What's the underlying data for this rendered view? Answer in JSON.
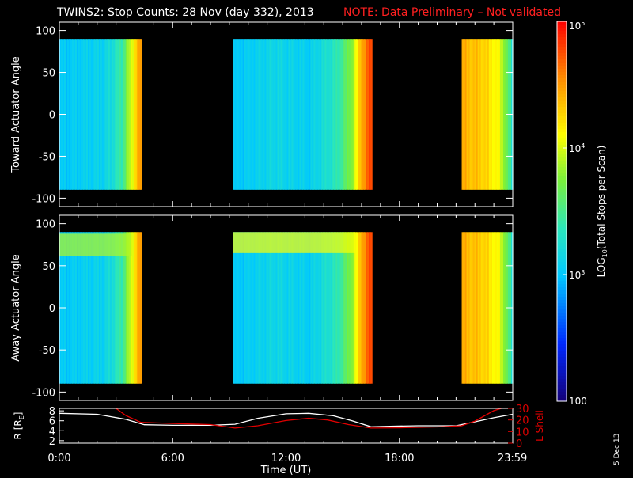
{
  "title": {
    "main": "TWINS2: Stop Counts: 28 Nov (day 332), 2013",
    "note": "NOTE: Data Preliminary – Not validated",
    "note_color": "#ff2020"
  },
  "footer": {
    "date_stamp": "5 Dec 13"
  },
  "chart_data": [
    {
      "type": "heatmap",
      "panel": "toward",
      "ylabel": "Toward Actuator Angle",
      "ylim": [
        -110,
        110
      ],
      "yticks": [
        -100,
        -50,
        0,
        50,
        100
      ],
      "y_data_range": [
        -90,
        90
      ],
      "xlim_hours": [
        0,
        24
      ],
      "data_blocks_hours": [
        {
          "start": 0.0,
          "end": 4.35,
          "profile": [
            [
              0,
              3.0
            ],
            [
              0.55,
              3.1
            ],
            [
              0.75,
              3.4
            ],
            [
              0.86,
              3.9
            ],
            [
              0.93,
              4.3
            ],
            [
              1,
              4.5
            ]
          ]
        },
        {
          "start": 9.2,
          "end": 16.55,
          "profile": [
            [
              0,
              3.0
            ],
            [
              0.3,
              3.15
            ],
            [
              0.55,
              3.05
            ],
            [
              0.75,
              3.35
            ],
            [
              0.86,
              3.8
            ],
            [
              0.92,
              4.4
            ],
            [
              0.97,
              4.7
            ],
            [
              1,
              4.8
            ]
          ]
        },
        {
          "start": 21.3,
          "end": 24.0,
          "profile": [
            [
              0,
              4.4
            ],
            [
              0.4,
              4.3
            ],
            [
              0.7,
              4.1
            ],
            [
              0.85,
              3.8
            ],
            [
              0.93,
              3.5
            ],
            [
              1,
              3.2
            ]
          ]
        }
      ]
    },
    {
      "type": "heatmap",
      "panel": "away",
      "ylabel": "Away Actuator Angle",
      "ylim": [
        -110,
        110
      ],
      "yticks": [
        -100,
        -50,
        0,
        50,
        100
      ],
      "y_data_range": [
        -90,
        90
      ],
      "xlim_hours": [
        0,
        24
      ],
      "data_blocks_hours": [
        {
          "start": 0.0,
          "end": 4.35,
          "profile": [
            [
              0,
              3.0
            ],
            [
              0.55,
              3.1
            ],
            [
              0.75,
              3.4
            ],
            [
              0.86,
              3.9
            ],
            [
              0.93,
              4.3
            ],
            [
              1,
              4.5
            ]
          ],
          "band": [
            62,
            88,
            3.9
          ]
        },
        {
          "start": 9.2,
          "end": 16.55,
          "profile": [
            [
              0,
              3.0
            ],
            [
              0.3,
              3.15
            ],
            [
              0.55,
              3.05
            ],
            [
              0.75,
              3.35
            ],
            [
              0.86,
              3.8
            ],
            [
              0.92,
              4.4
            ],
            [
              0.97,
              4.7
            ],
            [
              1,
              4.8
            ]
          ],
          "band": [
            65,
            90,
            4.1
          ]
        },
        {
          "start": 21.3,
          "end": 24.0,
          "profile": [
            [
              0,
              4.4
            ],
            [
              0.4,
              4.3
            ],
            [
              0.7,
              4.1
            ],
            [
              0.85,
              3.8
            ],
            [
              0.93,
              3.5
            ],
            [
              1,
              3.2
            ]
          ]
        }
      ]
    },
    {
      "type": "line",
      "panel": "ephemeris",
      "ylabel": "R [R",
      "ylabel_sub": "E",
      "ylim": [
        1.5,
        8.5
      ],
      "yticks": [
        2,
        4,
        6,
        8
      ],
      "y2label": "L Shell",
      "y2lim": [
        0,
        30
      ],
      "y2ticks": [
        0,
        10,
        20,
        30
      ],
      "x_tick_labels": [
        "0:00",
        "6:00",
        "12:00",
        "18:00",
        "23:59"
      ],
      "x_tick_hours": [
        0,
        6,
        12,
        18,
        23.983
      ],
      "xlabel": "Time (UT)",
      "series": [
        {
          "axis": "left",
          "color": "#ffffff",
          "points": [
            [
              0,
              7.5
            ],
            [
              2,
              7.3
            ],
            [
              3.5,
              6.3
            ],
            [
              4.5,
              5.2
            ],
            [
              6,
              5.1
            ],
            [
              8,
              5.1
            ],
            [
              9.3,
              5.3
            ],
            [
              10.5,
              6.5
            ],
            [
              12,
              7.4
            ],
            [
              13.2,
              7.5
            ],
            [
              14.5,
              7.0
            ],
            [
              15.5,
              6.0
            ],
            [
              16.5,
              4.8
            ],
            [
              17.5,
              4.9
            ],
            [
              19,
              5.0
            ],
            [
              21,
              5.0
            ],
            [
              22,
              5.8
            ],
            [
              23,
              6.6
            ],
            [
              24,
              7.3
            ]
          ]
        },
        {
          "axis": "right",
          "color": "#e00000",
          "points": [
            [
              3.0,
              30
            ],
            [
              3.5,
              24
            ],
            [
              4.3,
              18
            ],
            [
              6,
              17
            ],
            [
              8,
              16
            ],
            [
              9.3,
              13
            ],
            [
              10.5,
              15
            ],
            [
              12,
              19.5
            ],
            [
              13.2,
              21.5
            ],
            [
              14.2,
              20
            ],
            [
              15.3,
              16
            ],
            [
              16.5,
              13
            ],
            [
              18,
              13.2
            ],
            [
              20,
              14
            ],
            [
              21.3,
              15
            ],
            [
              22,
              19
            ],
            [
              23,
              28
            ],
            [
              23.4,
              30
            ]
          ]
        }
      ]
    }
  ],
  "colorbar": {
    "ylabel_prefix": "LOG",
    "ylabel_sub": "10",
    "ylabel_suffix": "(Total Stops per Scan)",
    "range_log10": [
      2,
      5
    ],
    "tick_values_log10": [
      2,
      3,
      4,
      5
    ],
    "tick_labels": [
      {
        "base": "100",
        "exp": ""
      },
      {
        "base": "10",
        "exp": "3"
      },
      {
        "base": "10",
        "exp": "4"
      },
      {
        "base": "10",
        "exp": "5"
      }
    ]
  }
}
